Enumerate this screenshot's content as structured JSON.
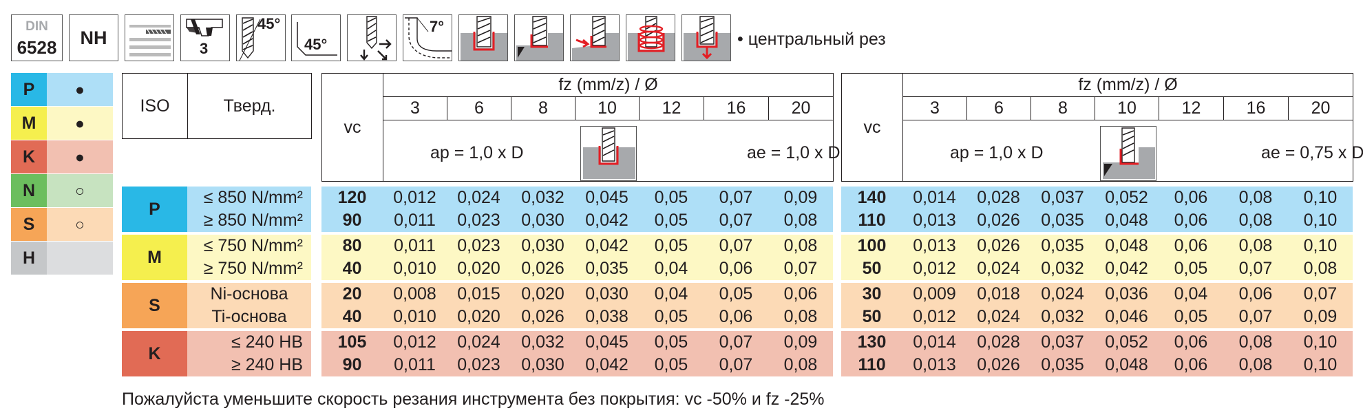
{
  "header": {
    "din_label": "DIN",
    "din_number": "6528",
    "nh_label": "NH",
    "icon_45_top": "45°",
    "icon_3": "3",
    "icon_45_side": "45°",
    "icon_7": "7°",
    "note": "• центральный рез"
  },
  "legend": [
    {
      "letter": "P",
      "mark": "●",
      "color_letter": "#29b8e6",
      "color_mark": "#aedff7"
    },
    {
      "letter": "M",
      "mark": "●",
      "color_letter": "#f5ef4e",
      "color_mark": "#fdf8c4"
    },
    {
      "letter": "K",
      "mark": "●",
      "color_letter": "#e16b55",
      "color_mark": "#f2c0b1"
    },
    {
      "letter": "N",
      "mark": "○",
      "color_letter": "#6cbe5e",
      "color_mark": "#c7e3c0"
    },
    {
      "letter": "S",
      "mark": "○",
      "color_letter": "#f6a557",
      "color_mark": "#fcdab6"
    },
    {
      "letter": "H",
      "mark": "",
      "color_letter": "#c5c7c9",
      "color_mark": "#dcdddf"
    }
  ],
  "table": {
    "iso_header": "ISO",
    "hardness_header": "Тверд.",
    "vc_header": "vc",
    "fz_header": "fz (mm/z) / Ø",
    "diameters": [
      "3",
      "6",
      "8",
      "10",
      "12",
      "16",
      "20"
    ],
    "left_ap": "ap = 1,0 x D",
    "left_ae": "ae = 1,0 x D",
    "right_ap": "ap = 1,0 x D",
    "right_ae": "ae = 0,75 x D",
    "groups": [
      {
        "iso": "P",
        "color_dark": "#29b8e6",
        "color_light": "#aedff7",
        "rows": [
          {
            "hardness": "≤ 850 N/mm²",
            "vc1": "120",
            "fz1": [
              "0,012",
              "0,024",
              "0,032",
              "0,045",
              "0,05",
              "0,07",
              "0,09"
            ],
            "vc2": "140",
            "fz2": [
              "0,014",
              "0,028",
              "0,037",
              "0,052",
              "0,06",
              "0,08",
              "0,10"
            ]
          },
          {
            "hardness": "≥ 850 N/mm²",
            "vc1": "90",
            "fz1": [
              "0,011",
              "0,023",
              "0,030",
              "0,042",
              "0,05",
              "0,07",
              "0,08"
            ],
            "vc2": "110",
            "fz2": [
              "0,013",
              "0,026",
              "0,035",
              "0,048",
              "0,06",
              "0,08",
              "0,10"
            ]
          }
        ]
      },
      {
        "iso": "M",
        "color_dark": "#f5ef4e",
        "color_light": "#fdf8c4",
        "rows": [
          {
            "hardness": "≤ 750 N/mm²",
            "vc1": "80",
            "fz1": [
              "0,011",
              "0,023",
              "0,030",
              "0,042",
              "0,05",
              "0,07",
              "0,08"
            ],
            "vc2": "100",
            "fz2": [
              "0,013",
              "0,026",
              "0,035",
              "0,048",
              "0,06",
              "0,08",
              "0,10"
            ]
          },
          {
            "hardness": "≥ 750 N/mm²",
            "vc1": "40",
            "fz1": [
              "0,010",
              "0,020",
              "0,026",
              "0,035",
              "0,04",
              "0,06",
              "0,07"
            ],
            "vc2": "50",
            "fz2": [
              "0,012",
              "0,024",
              "0,032",
              "0,042",
              "0,05",
              "0,07",
              "0,08"
            ]
          }
        ]
      },
      {
        "iso": "S",
        "color_dark": "#f6a557",
        "color_light": "#fcdab6",
        "rows": [
          {
            "hardness": "Ni-основа",
            "vc1": "20",
            "fz1": [
              "0,008",
              "0,015",
              "0,020",
              "0,030",
              "0,04",
              "0,05",
              "0,06"
            ],
            "vc2": "30",
            "fz2": [
              "0,009",
              "0,018",
              "0,024",
              "0,036",
              "0,04",
              "0,06",
              "0,07"
            ]
          },
          {
            "hardness": "Ti-основа",
            "vc1": "40",
            "fz1": [
              "0,010",
              "0,020",
              "0,026",
              "0,038",
              "0,05",
              "0,06",
              "0,08"
            ],
            "vc2": "50",
            "fz2": [
              "0,012",
              "0,024",
              "0,032",
              "0,046",
              "0,05",
              "0,07",
              "0,09"
            ]
          }
        ]
      },
      {
        "iso": "K",
        "color_dark": "#e16b55",
        "color_light": "#f2c0b1",
        "rows": [
          {
            "hardness": "≤ 240 HB",
            "vc1": "105",
            "fz1": [
              "0,012",
              "0,024",
              "0,032",
              "0,045",
              "0,05",
              "0,07",
              "0,09"
            ],
            "vc2": "130",
            "fz2": [
              "0,014",
              "0,028",
              "0,037",
              "0,052",
              "0,06",
              "0,08",
              "0,10"
            ]
          },
          {
            "hardness": "≥ 240 HB",
            "vc1": "90",
            "fz1": [
              "0,011",
              "0,023",
              "0,030",
              "0,042",
              "0,05",
              "0,07",
              "0,08"
            ],
            "vc2": "110",
            "fz2": [
              "0,013",
              "0,026",
              "0,035",
              "0,048",
              "0,06",
              "0,08",
              "0,10"
            ]
          }
        ]
      }
    ]
  },
  "footer": "Пожалуйста уменьшите скорость резания инструмента без покрытия: vc -50% и fz -25%"
}
